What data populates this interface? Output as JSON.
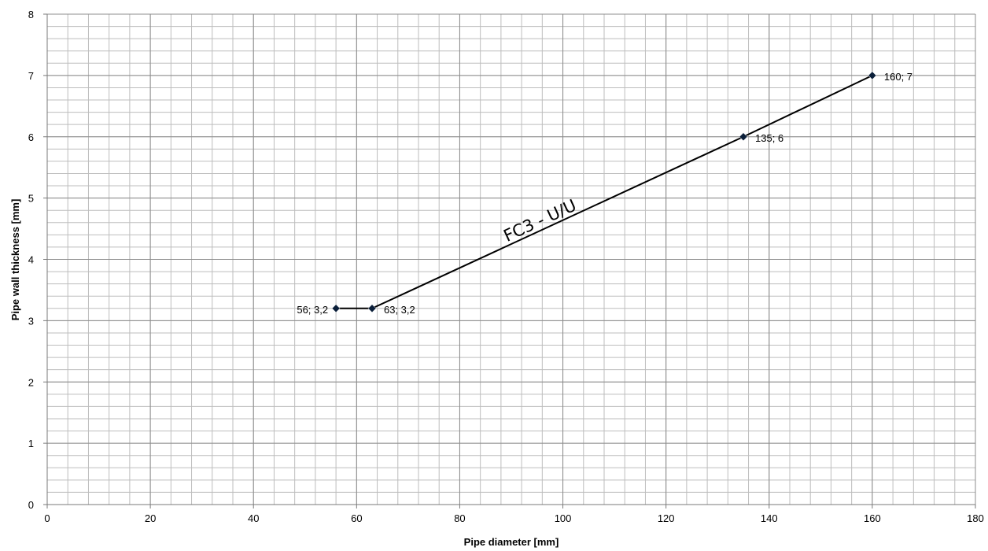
{
  "chart_data": {
    "type": "line",
    "title": "",
    "xlabel": "Pipe diameter  [mm]",
    "ylabel": "Pipe wall thickness  [mm]",
    "xlim": [
      0,
      180
    ],
    "ylim": [
      0,
      8
    ],
    "x_ticks": [
      0,
      20,
      40,
      60,
      80,
      100,
      120,
      140,
      160,
      180
    ],
    "y_ticks": [
      0,
      1,
      2,
      3,
      4,
      5,
      6,
      7,
      8
    ],
    "grid": true,
    "minor_grid": true,
    "series": [
      {
        "points": [
          {
            "x": 56,
            "y": 3.2,
            "label": "56; 3,2"
          },
          {
            "x": 63,
            "y": 3.2,
            "label": "63; 3,2"
          },
          {
            "x": 135,
            "y": 6,
            "label": "135; 6"
          },
          {
            "x": 160,
            "y": 7,
            "label": "160; 7"
          }
        ],
        "color": "#000000",
        "marker": "diamond",
        "marker_color": "#0b1f3a"
      }
    ],
    "annotations": [
      {
        "text": "FC3 - U/U",
        "x": 96,
        "y": 4.55
      }
    ]
  }
}
